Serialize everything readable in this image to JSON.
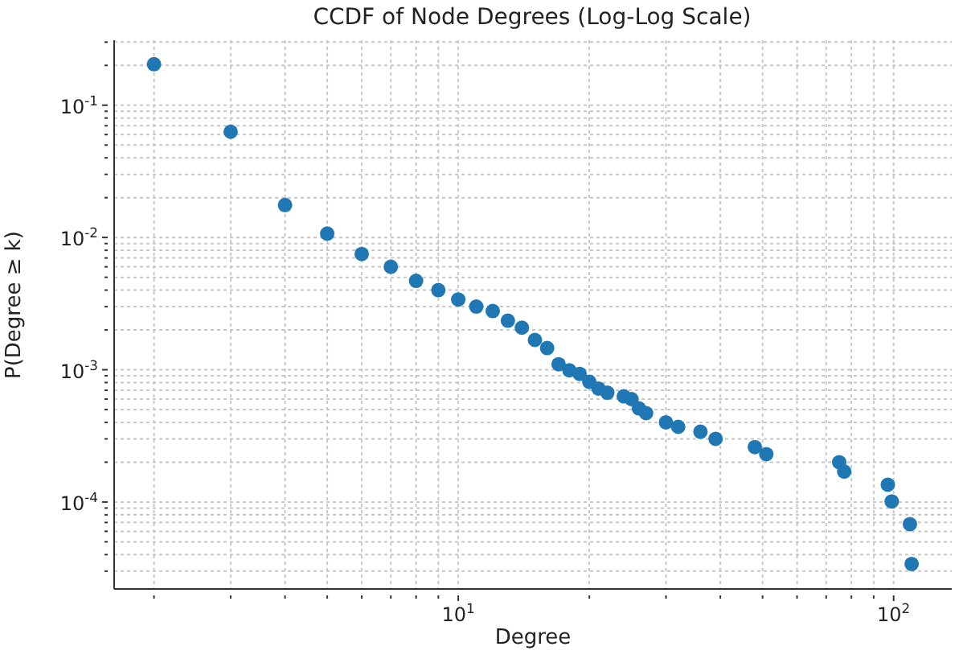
{
  "chart_data": {
    "type": "scatter",
    "title": "CCDF of Node Degrees (Log-Log Scale)",
    "xlabel": "Degree",
    "ylabel": "P(Degree ≥ k)",
    "log": "xy",
    "grid": true,
    "marker": "circle",
    "legend": false,
    "x": [
      2,
      3,
      4,
      5,
      6,
      7,
      8,
      9,
      10,
      11,
      12,
      13,
      14,
      15,
      16,
      17,
      18,
      19,
      20,
      21,
      22,
      24,
      25,
      26,
      27,
      30,
      32,
      36,
      39,
      48,
      51,
      75,
      77,
      97,
      99,
      109,
      110
    ],
    "series": [
      {
        "color": "#1f77b4",
        "values": [
          0.204,
          0.063,
          0.0176,
          0.0107,
          0.0075,
          0.006,
          0.0047,
          0.004,
          0.0034,
          0.003,
          0.00278,
          0.00235,
          0.00208,
          0.00168,
          0.00146,
          0.0011,
          0.00099,
          0.00093,
          0.00081,
          0.00072,
          0.00067,
          0.00063,
          0.0006,
          0.00051,
          0.00047,
          0.0004,
          0.00037,
          0.00034,
          0.0003,
          0.00026,
          0.00023,
          0.0002,
          0.00017,
          0.000135,
          0.000101,
          6.8e-05,
          3.4e-05
        ]
      }
    ],
    "xlim": [
      1.62,
      136
    ],
    "xticks": [
      {
        "value": 2,
        "label": null
      },
      {
        "value": 3,
        "label": null
      },
      {
        "value": 4,
        "label": null
      },
      {
        "value": 5,
        "label": null
      },
      {
        "value": 6,
        "label": null
      },
      {
        "value": 7,
        "label": null
      },
      {
        "value": 8,
        "label": null
      },
      {
        "value": 9,
        "label": null
      },
      {
        "value": 10,
        "label": "10$^{1}$"
      },
      {
        "value": 20,
        "label": null
      },
      {
        "value": 30,
        "label": null
      },
      {
        "value": 40,
        "label": null
      },
      {
        "value": 50,
        "label": null
      },
      {
        "value": 60,
        "label": null
      },
      {
        "value": 70,
        "label": null
      },
      {
        "value": 80,
        "label": null
      },
      {
        "value": 90,
        "label": null
      },
      {
        "value": 100,
        "label": "10$^{2}$"
      }
    ],
    "ylim": [
      2.2e-05,
      0.31
    ],
    "yticks": [
      {
        "value": 3e-05,
        "label": null
      },
      {
        "value": 4e-05,
        "label": null
      },
      {
        "value": 5e-05,
        "label": null
      },
      {
        "value": 6e-05,
        "label": null
      },
      {
        "value": 7e-05,
        "label": null
      },
      {
        "value": 8e-05,
        "label": null
      },
      {
        "value": 9e-05,
        "label": null
      },
      {
        "value": 0.0001,
        "label": "10$^{-4}$"
      },
      {
        "value": 0.0002,
        "label": null
      },
      {
        "value": 0.0003,
        "label": null
      },
      {
        "value": 0.0004,
        "label": null
      },
      {
        "value": 0.0005,
        "label": null
      },
      {
        "value": 0.0006,
        "label": null
      },
      {
        "value": 0.0007,
        "label": null
      },
      {
        "value": 0.0008,
        "label": null
      },
      {
        "value": 0.0009,
        "label": null
      },
      {
        "value": 0.001,
        "label": "10$^{-3}$"
      },
      {
        "value": 0.002,
        "label": null
      },
      {
        "value": 0.003,
        "label": null
      },
      {
        "value": 0.004,
        "label": null
      },
      {
        "value": 0.005,
        "label": null
      },
      {
        "value": 0.006,
        "label": null
      },
      {
        "value": 0.007,
        "label": null
      },
      {
        "value": 0.008,
        "label": null
      },
      {
        "value": 0.009,
        "label": null
      },
      {
        "value": 0.01,
        "label": "10$^{-2}$"
      },
      {
        "value": 0.02,
        "label": null
      },
      {
        "value": 0.03,
        "label": null
      },
      {
        "value": 0.04,
        "label": null
      },
      {
        "value": 0.05,
        "label": null
      },
      {
        "value": 0.06,
        "label": null
      },
      {
        "value": 0.07,
        "label": null
      },
      {
        "value": 0.08,
        "label": null
      },
      {
        "value": 0.09,
        "label": null
      },
      {
        "value": 0.1,
        "label": "10$^{-1}$"
      },
      {
        "value": 0.2,
        "label": null
      },
      {
        "value": 0.3,
        "label": null
      }
    ]
  }
}
